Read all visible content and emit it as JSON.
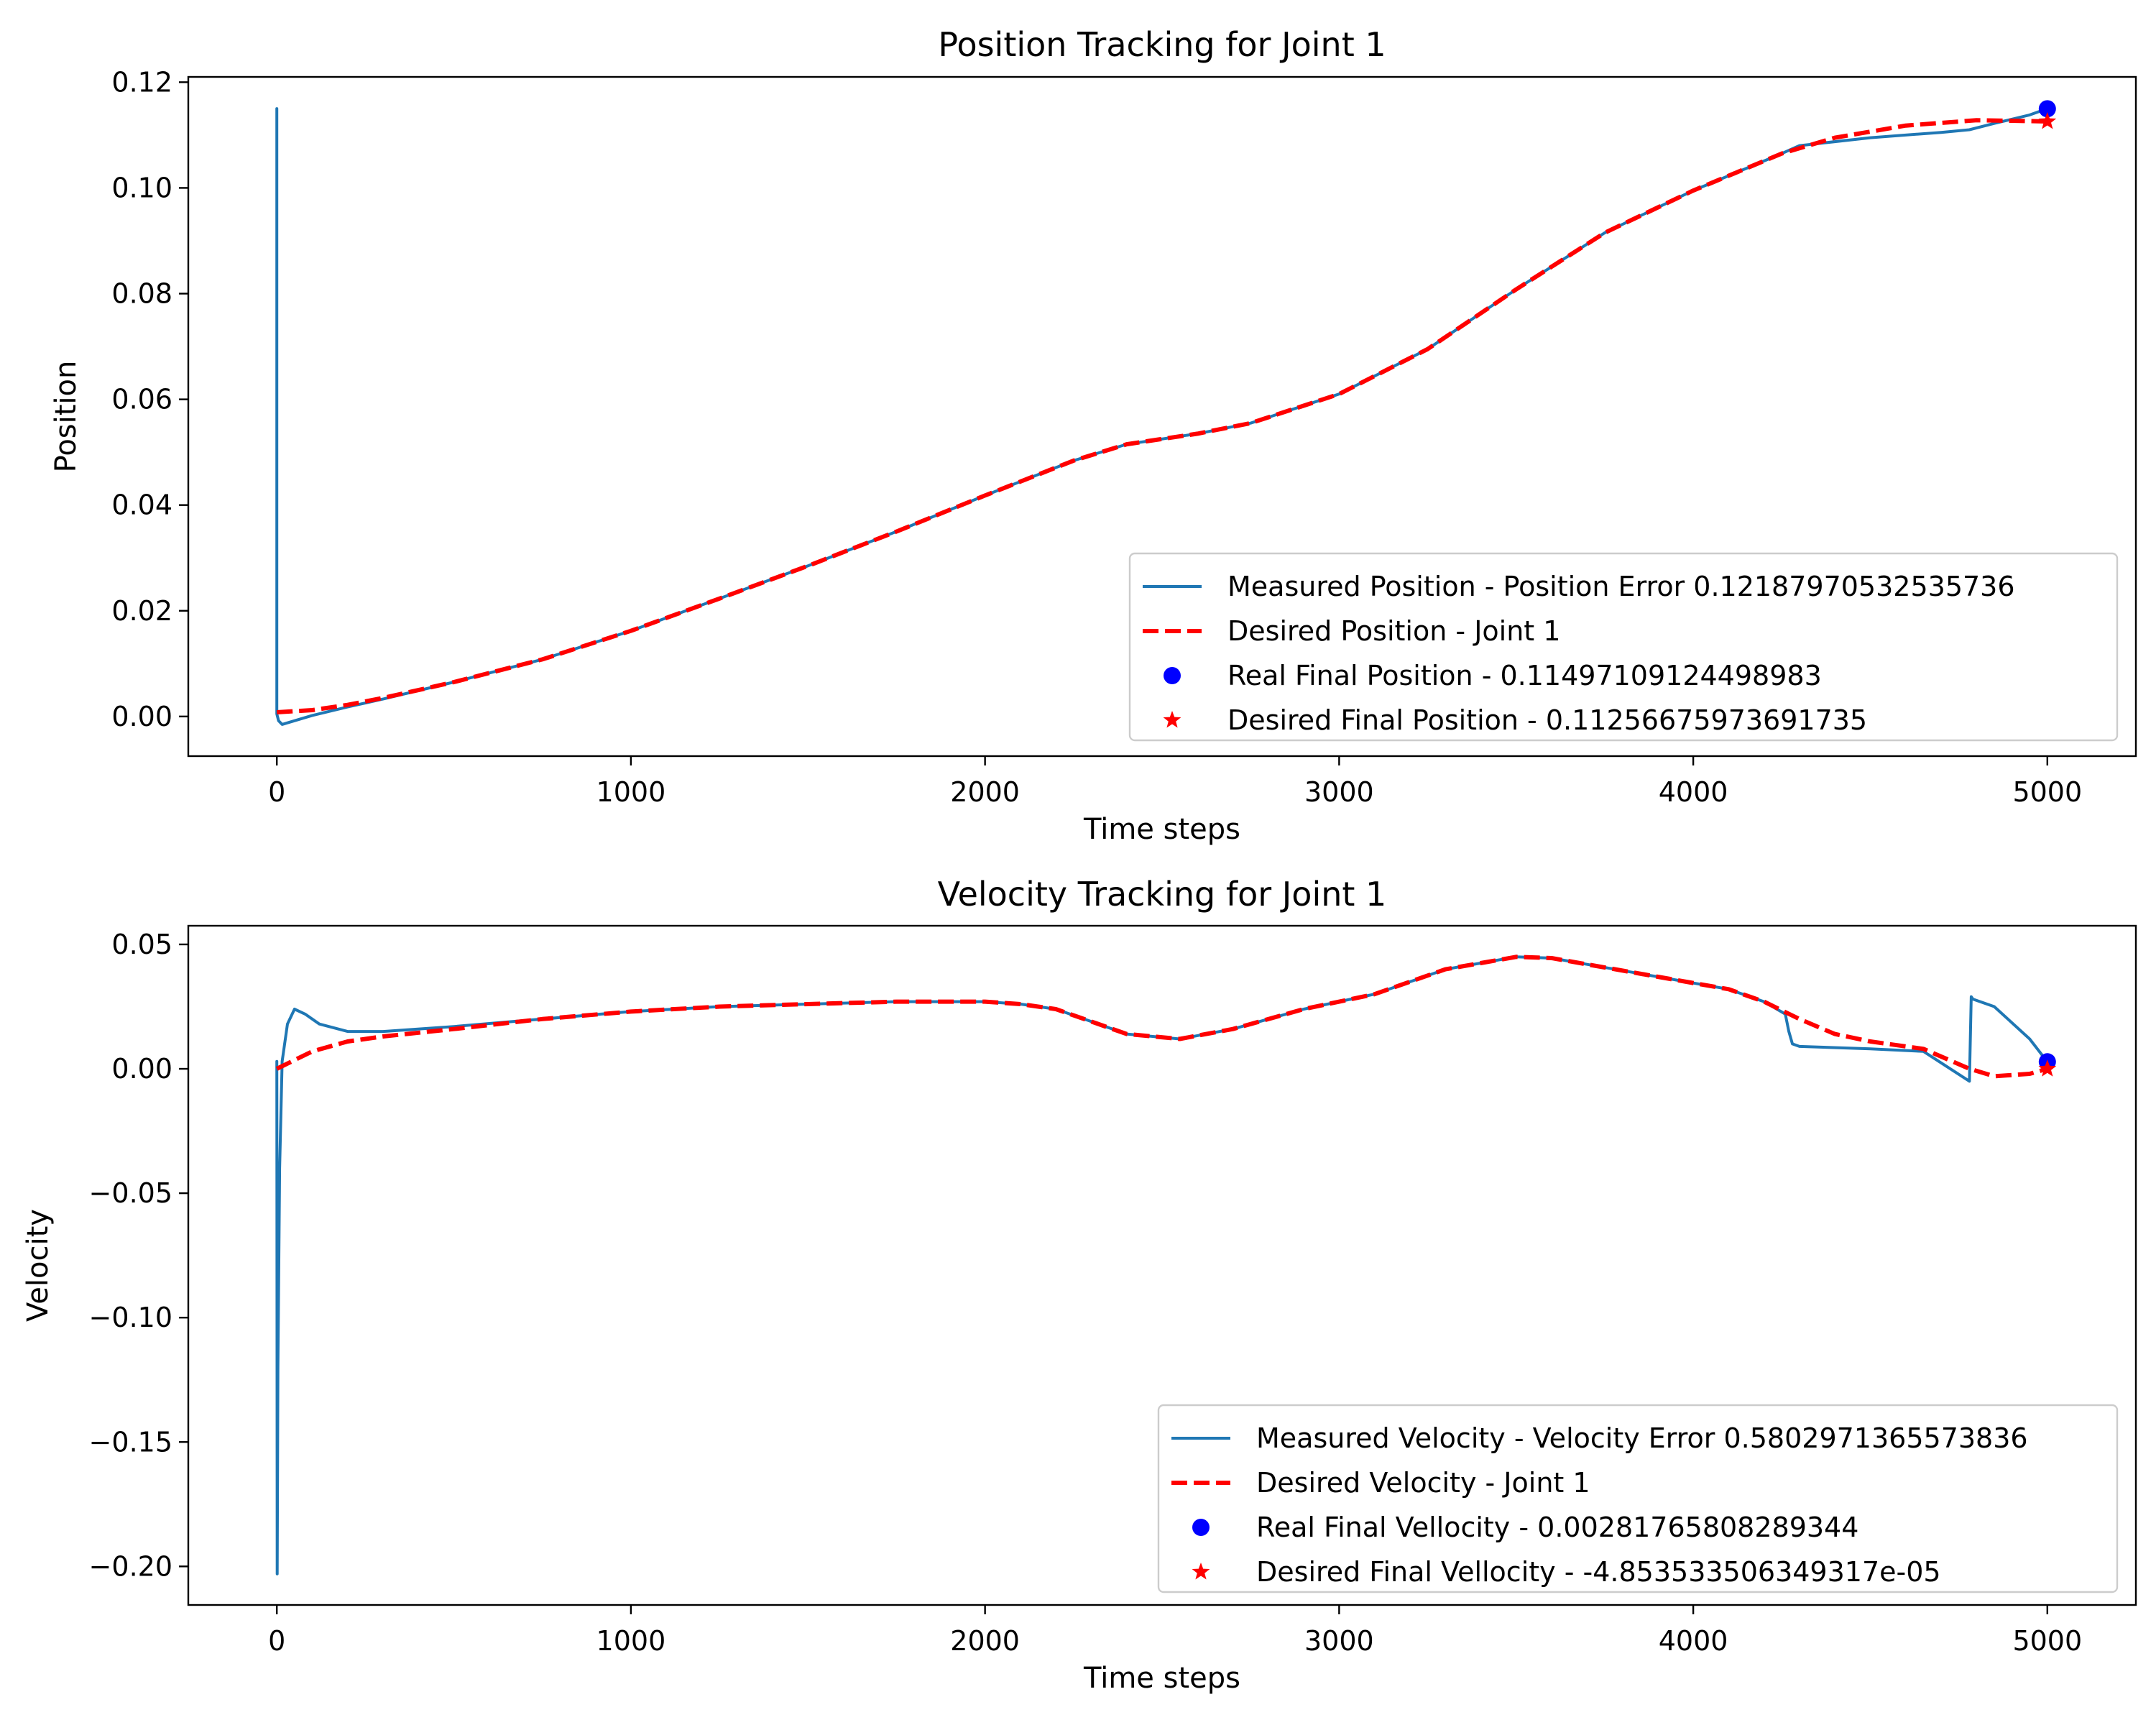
{
  "chart_data": [
    {
      "type": "line",
      "title": "Position Tracking for Joint 1",
      "xlabel": "Time steps",
      "ylabel": "Position",
      "xlim": [
        -250,
        5250
      ],
      "ylim": [
        -0.0075,
        0.121
      ],
      "xticks": [
        0,
        1000,
        2000,
        3000,
        4000,
        5000
      ],
      "xtick_labels": [
        "0",
        "1000",
        "2000",
        "3000",
        "4000",
        "5000"
      ],
      "yticks": [
        0.0,
        0.02,
        0.04,
        0.06,
        0.08,
        0.1,
        0.12
      ],
      "ytick_labels": [
        "0.00",
        "0.02",
        "0.04",
        "0.06",
        "0.08",
        "0.10",
        "0.12"
      ],
      "legend_position": "lower right",
      "grid": false,
      "series": [
        {
          "name": "Measured Position - Position Error 0.12187970532535736",
          "kind": "line",
          "color": "#1f77b4",
          "style": "solid",
          "x": [
            0,
            0,
            5,
            15,
            30,
            60,
            100,
            200,
            300,
            500,
            750,
            1000,
            1250,
            1500,
            1750,
            2000,
            2250,
            2400,
            2600,
            2750,
            3000,
            3250,
            3500,
            3750,
            4000,
            4250,
            4300,
            4500,
            4700,
            4780,
            4850,
            4950,
            5000
          ],
          "y": [
            0.115,
            0.0005,
            -0.0008,
            -0.0015,
            -0.0012,
            -0.0006,
            0.0002,
            0.0018,
            0.0033,
            0.0065,
            0.0108,
            0.0162,
            0.0223,
            0.0285,
            0.035,
            0.0418,
            0.0484,
            0.0515,
            0.0535,
            0.0555,
            0.061,
            0.0695,
            0.0808,
            0.0915,
            0.0995,
            0.1065,
            0.108,
            0.1095,
            0.1105,
            0.111,
            0.1122,
            0.1138,
            0.115
          ]
        },
        {
          "name": "Desired Position - Joint 1",
          "kind": "line",
          "color": "#ff0000",
          "style": "dashed",
          "x": [
            0,
            100,
            200,
            300,
            500,
            750,
            1000,
            1250,
            1500,
            1750,
            2000,
            2250,
            2400,
            2600,
            2750,
            3000,
            3250,
            3500,
            3750,
            4000,
            4250,
            4400,
            4600,
            4800,
            4900,
            5000
          ],
          "y": [
            0.0008,
            0.0012,
            0.0022,
            0.0035,
            0.0065,
            0.0108,
            0.0162,
            0.0223,
            0.0285,
            0.035,
            0.0418,
            0.0484,
            0.0515,
            0.0535,
            0.0555,
            0.061,
            0.0695,
            0.0808,
            0.0915,
            0.0995,
            0.1065,
            0.1095,
            0.1118,
            0.1128,
            0.1127,
            0.11257
          ]
        },
        {
          "name": "Real Final Position - 0.11497109124498983",
          "kind": "point",
          "marker": "circle",
          "color": "#0000ff",
          "x": [
            5000
          ],
          "y": [
            0.11497109124498983
          ]
        },
        {
          "name": "Desired Final Position - 0.11256675973691735",
          "kind": "point",
          "marker": "star",
          "color": "#ff0000",
          "x": [
            5000
          ],
          "y": [
            0.11256675973691735
          ]
        }
      ]
    },
    {
      "type": "line",
      "title": "Velocity Tracking for Joint 1",
      "xlabel": "Time steps",
      "ylabel": "Velocity",
      "xlim": [
        -250,
        5250
      ],
      "ylim": [
        -0.2155,
        0.0575
      ],
      "xticks": [
        0,
        1000,
        2000,
        3000,
        4000,
        5000
      ],
      "xtick_labels": [
        "0",
        "1000",
        "2000",
        "3000",
        "4000",
        "5000"
      ],
      "yticks": [
        -0.2,
        -0.15,
        -0.1,
        -0.05,
        0.0,
        0.05
      ],
      "ytick_labels": [
        "−0.20",
        "−0.15",
        "−0.10",
        "−0.05",
        "0.00",
        "0.05"
      ],
      "legend_position": "lower right",
      "grid": false,
      "series": [
        {
          "name": "Measured Velocity - Velocity Error 0.5802971365573836",
          "kind": "line",
          "color": "#1f77b4",
          "style": "solid",
          "x": [
            0,
            1,
            3,
            8,
            15,
            30,
            50,
            80,
            120,
            200,
            300,
            500,
            750,
            1000,
            1250,
            1500,
            1750,
            2000,
            2100,
            2200,
            2300,
            2400,
            2550,
            2700,
            2900,
            3100,
            3300,
            3500,
            3600,
            3700,
            3900,
            4100,
            4200,
            4260,
            4270,
            4280,
            4300,
            4500,
            4650,
            4780,
            4785,
            4790,
            4850,
            4950,
            5000
          ],
          "y": [
            0.003,
            -0.203,
            -0.12,
            -0.04,
            0.003,
            0.018,
            0.024,
            0.022,
            0.018,
            0.015,
            0.015,
            0.017,
            0.02,
            0.023,
            0.025,
            0.026,
            0.027,
            0.027,
            0.026,
            0.024,
            0.019,
            0.014,
            0.012,
            0.016,
            0.024,
            0.03,
            0.04,
            0.045,
            0.0445,
            0.042,
            0.037,
            0.032,
            0.027,
            0.022,
            0.015,
            0.01,
            0.009,
            0.008,
            0.007,
            -0.005,
            0.029,
            0.028,
            0.025,
            0.012,
            0.0028
          ]
        },
        {
          "name": "Desired Velocity - Joint 1",
          "kind": "line",
          "color": "#ff0000",
          "style": "dashed",
          "x": [
            0,
            100,
            200,
            300,
            500,
            750,
            1000,
            1250,
            1500,
            1750,
            2000,
            2100,
            2200,
            2300,
            2400,
            2550,
            2700,
            2900,
            3100,
            3300,
            3500,
            3600,
            3700,
            3900,
            4100,
            4200,
            4300,
            4400,
            4500,
            4650,
            4780,
            4850,
            4950,
            5000
          ],
          "y": [
            0.0,
            0.007,
            0.011,
            0.013,
            0.016,
            0.02,
            0.023,
            0.025,
            0.026,
            0.027,
            0.027,
            0.026,
            0.024,
            0.019,
            0.014,
            0.012,
            0.016,
            0.024,
            0.03,
            0.04,
            0.045,
            0.0445,
            0.042,
            0.037,
            0.032,
            0.027,
            0.02,
            0.014,
            0.011,
            0.008,
            0.0,
            -0.003,
            -0.002,
            0.0
          ]
        },
        {
          "name": "Real Final Vellocity - 0.00281765808289344",
          "kind": "point",
          "marker": "circle",
          "color": "#0000ff",
          "x": [
            5000
          ],
          "y": [
            0.00281765808289344
          ]
        },
        {
          "name": "Desired Final Vellocity - -4.853533506349317e-05",
          "kind": "point",
          "marker": "star",
          "color": "#ff0000",
          "x": [
            5000
          ],
          "y": [
            -4.853533506349317e-05
          ]
        }
      ]
    }
  ]
}
